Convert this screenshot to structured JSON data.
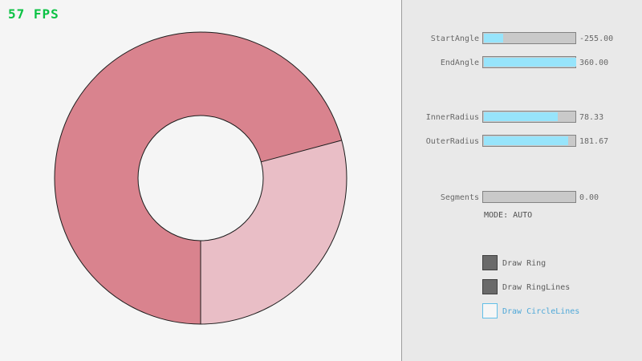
{
  "fps": "57 FPS",
  "colors": {
    "background_left": "#f5f5f5",
    "panel_background": "#e9e9e9",
    "divider": "#9e9e9e",
    "fps_green": "#0bc244",
    "slider_fill_blue": "#97e4fb",
    "slider_track_gray": "#c9c9c9",
    "checkbox_checked_gray": "#6a6a6a",
    "checkbox_unchecked_blue": "#62bfe8"
  },
  "ring": {
    "dark_color": "#d9838e",
    "light_color": "#e9bec6",
    "hole_color": "#f5f5f5",
    "outline_color": "#1c1c1c"
  },
  "panel": {
    "sliders": [
      {
        "label": "StartAngle",
        "value": "-255.00",
        "fill": 0.21
      },
      {
        "label": "EndAngle",
        "value": "360.00",
        "fill": 1.0
      },
      {
        "label": "InnerRadius",
        "value": "78.33",
        "fill": 0.8
      },
      {
        "label": "OuterRadius",
        "value": "181.67",
        "fill": 0.91
      },
      {
        "label": "Segments",
        "value": "0.00",
        "fill": 0.0
      }
    ],
    "mode_text": "MODE: AUTO",
    "checkboxes": [
      {
        "label": "Draw Ring",
        "checked": true
      },
      {
        "label": "Draw RingLines",
        "checked": true
      },
      {
        "label": "Draw CircleLines",
        "checked": false
      }
    ]
  }
}
